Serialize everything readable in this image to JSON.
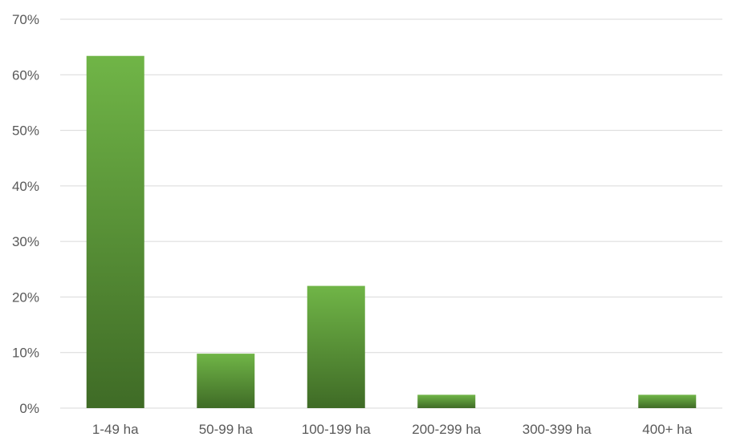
{
  "chart_data": {
    "type": "bar",
    "title": "",
    "xlabel": "",
    "ylabel": "",
    "categories": [
      "1-49 ha",
      "50-99 ha",
      "100-199 ha",
      "200-299 ha",
      "300-399 ha",
      "400+ ha"
    ],
    "values": [
      63.4,
      9.8,
      22.0,
      2.4,
      0,
      2.4
    ],
    "ylim": [
      0,
      70
    ],
    "yticks": [
      0,
      10,
      20,
      30,
      40,
      50,
      60,
      70
    ],
    "ytick_labels": [
      "0%",
      "10%",
      "20%",
      "30%",
      "40%",
      "50%",
      "60%",
      "70%"
    ],
    "grid": true,
    "legend": "none",
    "colors": {
      "bar_top": "#70b547",
      "bar_bottom": "#3f6b26",
      "gridline": "#d9d9d9",
      "text": "#595959"
    }
  }
}
